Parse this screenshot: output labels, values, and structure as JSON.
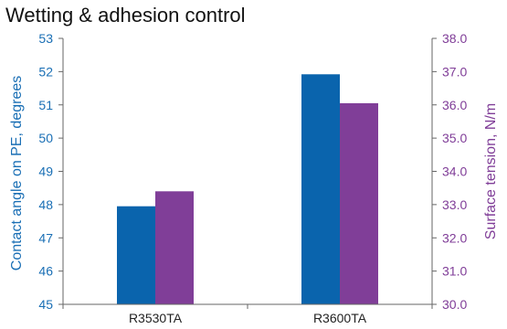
{
  "chart_data": {
    "type": "bar",
    "title": "Wetting & adhesion control",
    "categories": [
      "R3530TA",
      "R3600TA"
    ],
    "series": [
      {
        "axis": "left",
        "color": "#0a64ad",
        "values": [
          47.95,
          51.92
        ]
      },
      {
        "axis": "right",
        "color": "#803e98",
        "values": [
          33.4,
          36.05
        ]
      }
    ],
    "y_left": {
      "label": "Contact angle on PE, degrees",
      "ylim": [
        45,
        53
      ],
      "ticks": [
        "45",
        "46",
        "47",
        "48",
        "49",
        "50",
        "51",
        "52",
        "53"
      ],
      "color": "#1a6fb5"
    },
    "y_right": {
      "label": "Surface tension, N/m",
      "ylim": [
        30.0,
        38.0
      ],
      "ticks": [
        "30.0",
        "31.0",
        "32.0",
        "33.0",
        "34.0",
        "35.0",
        "36.0",
        "37.0",
        "38.0"
      ],
      "color": "#803e98"
    },
    "grid": false,
    "legend": "none"
  }
}
